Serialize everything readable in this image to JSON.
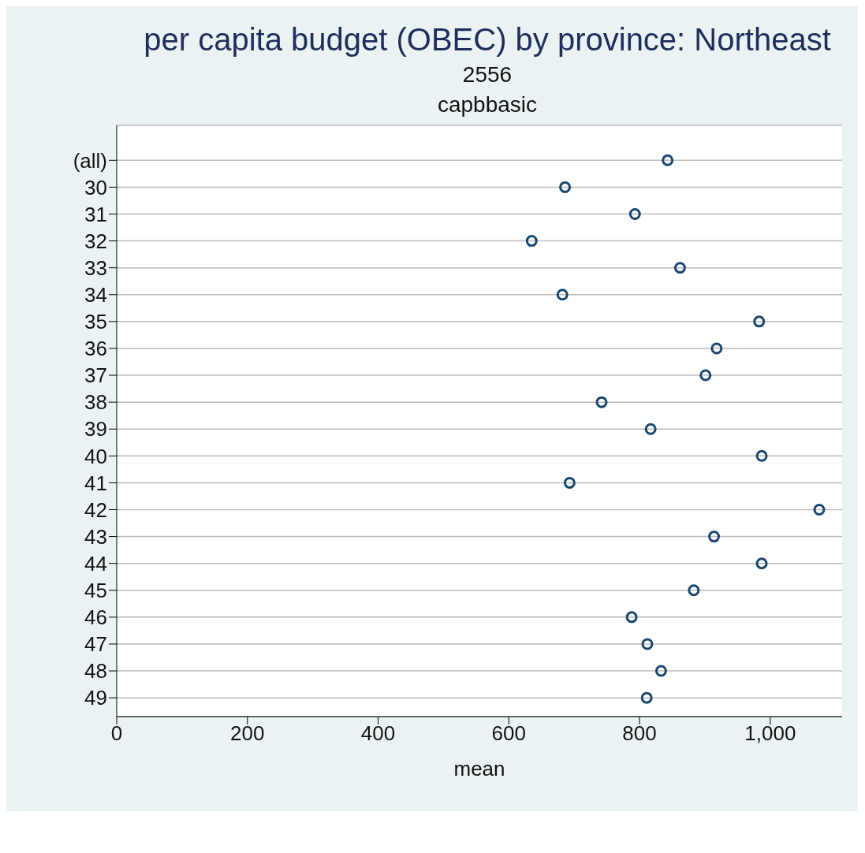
{
  "chart_data": {
    "type": "scatter",
    "title": "per capita budget (OBEC) by province: Northeast",
    "subtitle": "2556",
    "annotations": [
      "capbbasic"
    ],
    "xlabel": "mean",
    "categories": [
      "(all)",
      "30",
      "31",
      "32",
      "33",
      "34",
      "35",
      "36",
      "37",
      "38",
      "39",
      "40",
      "41",
      "42",
      "43",
      "44",
      "45",
      "46",
      "47",
      "48",
      "49"
    ],
    "series": [
      {
        "color": "#1a476f",
        "values": [
          843,
          686,
          793,
          635,
          862,
          682,
          983,
          918,
          901,
          742,
          817,
          987,
          693,
          1075,
          914,
          987,
          883,
          788,
          812,
          833,
          811
        ]
      }
    ],
    "xlim": [
      0,
      1110
    ],
    "xticks": [
      0,
      200,
      400,
      600,
      800,
      {
        "value": 1000,
        "label": "1,000"
      }
    ],
    "grid": "y",
    "marker": "circle",
    "orientation": "horizontal"
  }
}
